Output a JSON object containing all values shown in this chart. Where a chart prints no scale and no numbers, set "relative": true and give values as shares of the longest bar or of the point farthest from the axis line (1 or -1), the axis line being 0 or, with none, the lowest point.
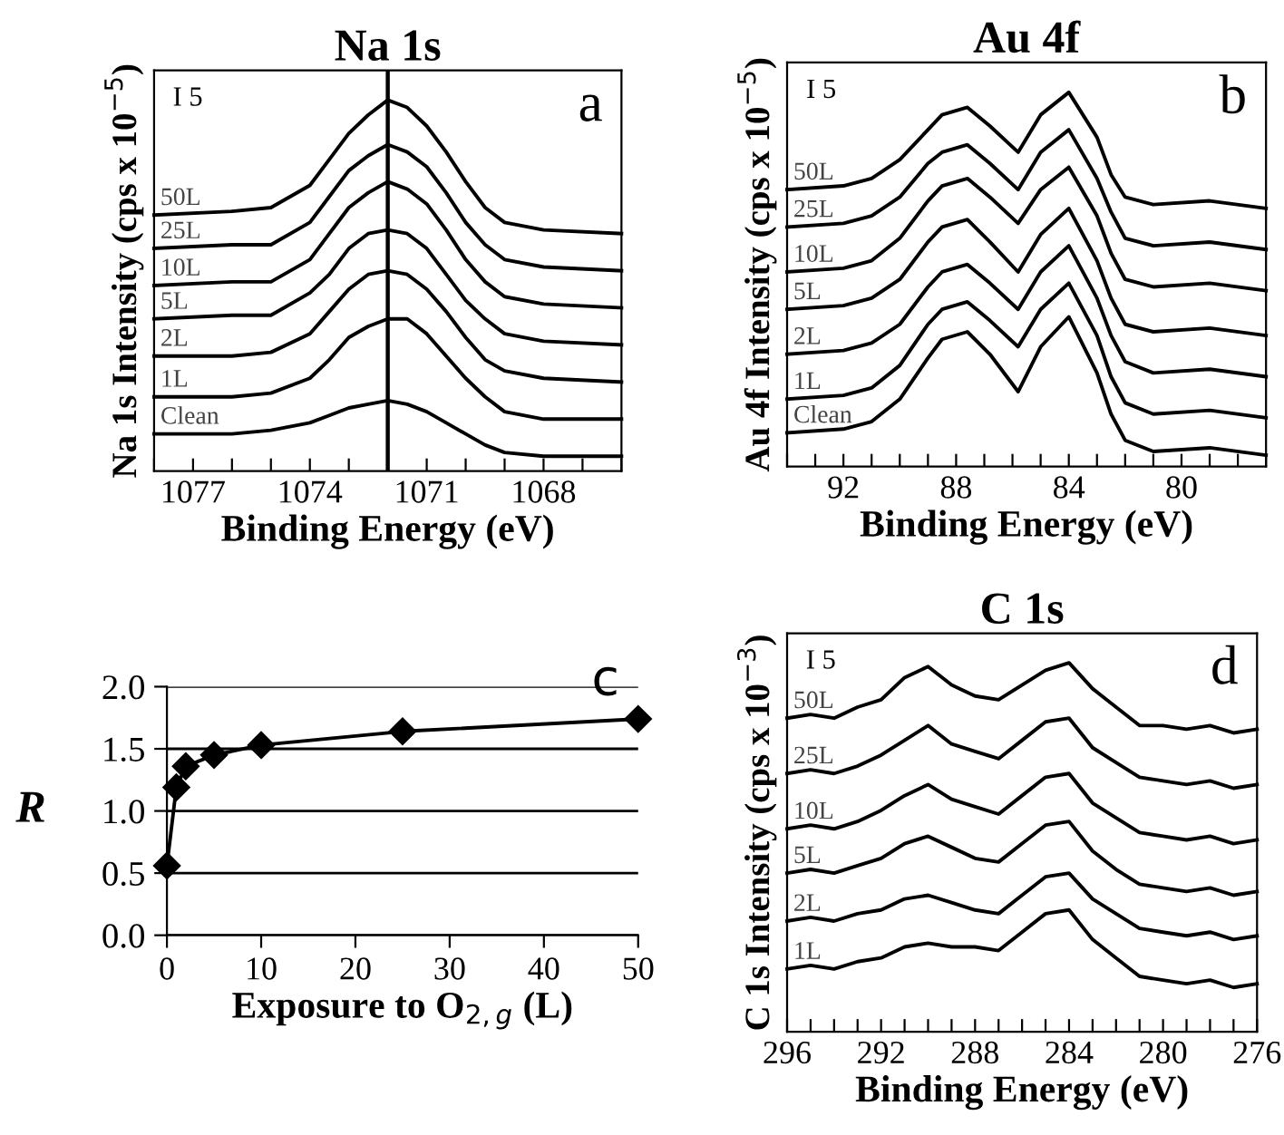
{
  "chart_data": [
    {
      "type": "line",
      "relative": true,
      "title": "Na 1s",
      "xlabel": "Binding Energy (eV)",
      "ylabel": "Na 1s Intensity (cps x 10$^{−5}$)",
      "annotations": [
        "I 5",
        "a"
      ],
      "tick_labels": "x",
      "xlim": [
        1078,
        1066
      ],
      "xticks": [
        {
          "value": 1078,
          "label": null
        },
        1077,
        {
          "value": 1076,
          "label": null
        },
        {
          "value": 1075,
          "label": null
        },
        1074,
        {
          "value": 1073,
          "label": null
        },
        {
          "value": 1072,
          "label": null
        },
        1071,
        {
          "value": 1070,
          "label": null
        },
        {
          "value": 1069,
          "label": null
        },
        1068,
        {
          "value": 1067,
          "label": null
        },
        {
          "value": 1066,
          "label": null
        }
      ],
      "ref_lines": [
        {
          "axis": "x",
          "value": 1072,
          "color": "#000000"
        }
      ],
      "x": [
        1078,
        1076,
        1075,
        1074,
        1073.5,
        1073,
        1072.5,
        1072,
        1071.5,
        1071,
        1070.5,
        1070,
        1069.5,
        1069,
        1068,
        1066
      ],
      "series": [
        {
          "name": "50L",
          "color": "#000000",
          "values": [
            0.69,
            0.7,
            0.71,
            0.77,
            0.84,
            0.91,
            0.96,
            1.0,
            0.98,
            0.93,
            0.86,
            0.78,
            0.71,
            0.67,
            0.65,
            0.64
          ]
        },
        {
          "name": "25L",
          "color": "#000000",
          "values": [
            0.6,
            0.61,
            0.61,
            0.67,
            0.74,
            0.81,
            0.85,
            0.88,
            0.86,
            0.82,
            0.75,
            0.67,
            0.61,
            0.57,
            0.55,
            0.54
          ]
        },
        {
          "name": "10L",
          "color": "#000000",
          "values": [
            0.5,
            0.51,
            0.51,
            0.57,
            0.64,
            0.71,
            0.75,
            0.78,
            0.76,
            0.72,
            0.65,
            0.57,
            0.51,
            0.47,
            0.45,
            0.44
          ]
        },
        {
          "name": "5L",
          "color": "#000000",
          "values": [
            0.41,
            0.42,
            0.42,
            0.48,
            0.53,
            0.6,
            0.64,
            0.65,
            0.64,
            0.6,
            0.53,
            0.46,
            0.41,
            0.37,
            0.35,
            0.34
          ]
        },
        {
          "name": "2L",
          "color": "#000000",
          "values": [
            0.31,
            0.31,
            0.32,
            0.37,
            0.43,
            0.49,
            0.53,
            0.54,
            0.53,
            0.49,
            0.43,
            0.36,
            0.3,
            0.27,
            0.25,
            0.24
          ]
        },
        {
          "name": "1L",
          "color": "#000000",
          "values": [
            0.2,
            0.2,
            0.21,
            0.25,
            0.3,
            0.36,
            0.39,
            0.41,
            0.41,
            0.37,
            0.31,
            0.25,
            0.2,
            0.16,
            0.14,
            0.14
          ]
        },
        {
          "name": "Clean",
          "color": "#000000",
          "values": [
            0.1,
            0.1,
            0.11,
            0.13,
            0.15,
            0.17,
            0.18,
            0.19,
            0.18,
            0.16,
            0.13,
            0.1,
            0.07,
            0.05,
            0.04,
            0.04
          ]
        }
      ]
    },
    {
      "type": "line",
      "relative": true,
      "title": "Au 4f",
      "xlabel": "Binding Energy (eV)",
      "ylabel": "Au 4f Intensity (cps x 10$^{−5}$)",
      "annotations": [
        "I 5",
        "b"
      ],
      "tick_labels": "x",
      "xlim": [
        94,
        77
      ],
      "xticks": [
        {
          "value": 94,
          "label": null
        },
        {
          "value": 93,
          "label": null
        },
        92,
        {
          "value": 91,
          "label": null
        },
        {
          "value": 90,
          "label": null
        },
        {
          "value": 89,
          "label": null
        },
        88,
        {
          "value": 87,
          "label": null
        },
        {
          "value": 86,
          "label": null
        },
        {
          "value": 85,
          "label": null
        },
        84,
        {
          "value": 83,
          "label": null
        },
        {
          "value": 82,
          "label": null
        },
        {
          "value": 81,
          "label": null
        },
        80,
        {
          "value": 79,
          "label": null
        },
        {
          "value": 78,
          "label": null
        },
        {
          "value": 77,
          "label": null
        }
      ],
      "x": [
        94,
        92,
        91,
        90,
        89,
        88.5,
        87.6,
        86.8,
        85.8,
        85,
        84,
        83,
        82.5,
        82,
        81,
        79,
        77
      ],
      "series": [
        {
          "name": "50L",
          "color": "#000000",
          "values": [
            0.74,
            0.75,
            0.77,
            0.82,
            0.9,
            0.94,
            0.96,
            0.91,
            0.84,
            0.94,
            1.0,
            0.88,
            0.78,
            0.72,
            0.7,
            0.71,
            0.69
          ]
        },
        {
          "name": "25L",
          "color": "#000000",
          "values": [
            0.64,
            0.65,
            0.67,
            0.72,
            0.81,
            0.84,
            0.86,
            0.81,
            0.74,
            0.84,
            0.9,
            0.77,
            0.68,
            0.61,
            0.59,
            0.6,
            0.58
          ]
        },
        {
          "name": "10L",
          "color": "#000000",
          "values": [
            0.52,
            0.53,
            0.55,
            0.61,
            0.71,
            0.75,
            0.77,
            0.72,
            0.65,
            0.74,
            0.8,
            0.67,
            0.57,
            0.5,
            0.48,
            0.49,
            0.47
          ]
        },
        {
          "name": "5L",
          "color": "#000000",
          "values": [
            0.42,
            0.43,
            0.45,
            0.5,
            0.6,
            0.64,
            0.66,
            0.6,
            0.52,
            0.62,
            0.69,
            0.55,
            0.45,
            0.38,
            0.36,
            0.37,
            0.35
          ]
        },
        {
          "name": "2L",
          "color": "#000000",
          "values": [
            0.3,
            0.31,
            0.33,
            0.38,
            0.48,
            0.52,
            0.54,
            0.49,
            0.42,
            0.52,
            0.59,
            0.45,
            0.35,
            0.28,
            0.25,
            0.26,
            0.24
          ]
        },
        {
          "name": "1L",
          "color": "#000000",
          "values": [
            0.18,
            0.19,
            0.21,
            0.27,
            0.38,
            0.42,
            0.44,
            0.39,
            0.32,
            0.42,
            0.49,
            0.35,
            0.24,
            0.17,
            0.14,
            0.15,
            0.13
          ]
        },
        {
          "name": "Clean",
          "color": "#000000",
          "values": [
            0.09,
            0.1,
            0.12,
            0.18,
            0.29,
            0.34,
            0.36,
            0.3,
            0.2,
            0.32,
            0.4,
            0.25,
            0.14,
            0.07,
            0.04,
            0.05,
            0.03
          ]
        }
      ]
    },
    {
      "type": "line",
      "xlabel": "Exposure to O$_{2,g}$ (L)",
      "ylabel": "R",
      "annotations": [
        "c"
      ],
      "marker": "diamond",
      "grid": "y",
      "xlim": [
        0,
        50
      ],
      "xticks": [
        0,
        10,
        20,
        30,
        40,
        50
      ],
      "ylim": [
        0,
        2
      ],
      "yticks": [
        {
          "value": 0,
          "label": "0.0"
        },
        0.5,
        {
          "value": 1,
          "label": "1.0"
        },
        1.5,
        {
          "value": 2,
          "label": "2.0"
        }
      ],
      "x": [
        0,
        1,
        2,
        5,
        10,
        25,
        50
      ],
      "series": [
        {
          "color": "#000000",
          "values": [
            0.56,
            1.19,
            1.36,
            1.45,
            1.53,
            1.64,
            1.74
          ]
        }
      ]
    },
    {
      "type": "line",
      "relative": true,
      "title": "C 1s",
      "xlabel": "Binding Energy (eV)",
      "ylabel": "C 1s Intensity (cps x 10$^{−3}$)",
      "annotations": [
        "I 5",
        "d"
      ],
      "tick_labels": "x",
      "xlim": [
        296,
        276
      ],
      "xticks": [
        296,
        {
          "value": 295,
          "label": null
        },
        {
          "value": 294,
          "label": null
        },
        {
          "value": 293,
          "label": null
        },
        292,
        {
          "value": 291,
          "label": null
        },
        {
          "value": 290,
          "label": null
        },
        {
          "value": 289,
          "label": null
        },
        288,
        {
          "value": 287,
          "label": null
        },
        {
          "value": 286,
          "label": null
        },
        {
          "value": 285,
          "label": null
        },
        284,
        {
          "value": 283,
          "label": null
        },
        {
          "value": 282,
          "label": null
        },
        {
          "value": 281,
          "label": null
        },
        280,
        {
          "value": 279,
          "label": null
        },
        {
          "value": 278,
          "label": null
        },
        {
          "value": 277,
          "label": null
        },
        276
      ],
      "x": [
        296,
        295,
        294,
        293,
        292,
        291,
        290,
        289,
        288,
        287,
        286,
        285,
        284,
        283,
        282,
        281,
        280,
        279,
        278,
        277,
        276
      ],
      "series": [
        {
          "name": "50L",
          "color": "#000000",
          "values": [
            0.85,
            0.86,
            0.85,
            0.88,
            0.9,
            0.96,
            0.99,
            0.94,
            0.91,
            0.9,
            0.94,
            0.98,
            1.0,
            0.93,
            0.88,
            0.83,
            0.83,
            0.82,
            0.83,
            0.81,
            0.82
          ]
        },
        {
          "name": "25L",
          "color": "#000000",
          "values": [
            0.7,
            0.71,
            0.7,
            0.72,
            0.75,
            0.79,
            0.83,
            0.78,
            0.76,
            0.74,
            0.79,
            0.84,
            0.85,
            0.77,
            0.73,
            0.69,
            0.68,
            0.67,
            0.68,
            0.66,
            0.67
          ]
        },
        {
          "name": "10L",
          "color": "#000000",
          "values": [
            0.55,
            0.56,
            0.55,
            0.57,
            0.6,
            0.64,
            0.67,
            0.63,
            0.61,
            0.59,
            0.64,
            0.69,
            0.7,
            0.62,
            0.58,
            0.54,
            0.53,
            0.52,
            0.53,
            0.51,
            0.52
          ]
        },
        {
          "name": "5L",
          "color": "#000000",
          "values": [
            0.43,
            0.44,
            0.43,
            0.45,
            0.47,
            0.51,
            0.53,
            0.5,
            0.47,
            0.46,
            0.51,
            0.56,
            0.57,
            0.49,
            0.44,
            0.4,
            0.39,
            0.38,
            0.39,
            0.37,
            0.38
          ]
        },
        {
          "name": "2L",
          "color": "#000000",
          "values": [
            0.3,
            0.31,
            0.3,
            0.32,
            0.33,
            0.36,
            0.37,
            0.35,
            0.33,
            0.32,
            0.37,
            0.42,
            0.43,
            0.36,
            0.32,
            0.28,
            0.27,
            0.26,
            0.27,
            0.25,
            0.26
          ]
        },
        {
          "name": "1L",
          "color": "#000000",
          "values": [
            0.17,
            0.18,
            0.17,
            0.19,
            0.2,
            0.23,
            0.24,
            0.23,
            0.23,
            0.22,
            0.27,
            0.32,
            0.33,
            0.25,
            0.2,
            0.15,
            0.14,
            0.13,
            0.14,
            0.12,
            0.13
          ]
        }
      ]
    }
  ]
}
